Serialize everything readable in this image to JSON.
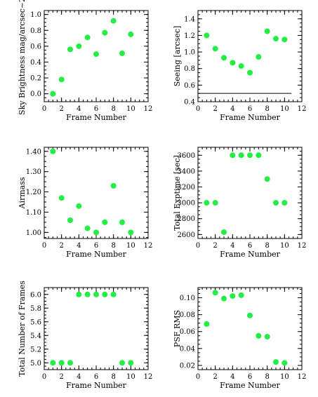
{
  "colors": {
    "point": "#22ee44",
    "axis": "#000000",
    "background": "#ffffff"
  },
  "chart_data": [
    {
      "type": "scatter",
      "title": "",
      "xlabel": "Frame Number",
      "ylabel": "Sky Brightness mag/arcsec~2",
      "xlim": [
        0,
        12
      ],
      "ylim": [
        -0.1,
        1.05
      ],
      "xticks": [
        0,
        2,
        4,
        6,
        8,
        10,
        12
      ],
      "xtick_labels": [
        "0",
        "2",
        "4",
        "6",
        "8",
        "10",
        "12"
      ],
      "yticks": [
        0.0,
        0.2,
        0.4,
        0.6,
        0.8,
        1.0
      ],
      "ytick_labels": [
        "0.0",
        "0.2",
        "0.4",
        "0.6",
        "0.8",
        "1.0"
      ],
      "x": [
        1,
        2,
        3,
        4,
        5,
        6,
        7,
        8,
        9,
        10
      ],
      "y": [
        0.0,
        0.18,
        0.56,
        0.6,
        0.71,
        0.5,
        0.77,
        0.92,
        0.51,
        0.75
      ],
      "grid": false
    },
    {
      "type": "scatter",
      "title": "",
      "xlabel": "Frame Number",
      "ylabel": "Seeing [arcsec]",
      "xlim": [
        0,
        12
      ],
      "ylim": [
        0.4,
        1.5
      ],
      "xticks": [
        0,
        2,
        4,
        6,
        8,
        10,
        12
      ],
      "xtick_labels": [
        "0",
        "2",
        "4",
        "6",
        "8",
        "10",
        "12"
      ],
      "yticks": [
        0.4,
        0.6,
        0.8,
        1.0,
        1.2,
        1.4
      ],
      "ytick_labels": [
        "0.4",
        "0.6",
        "0.8",
        "1.0",
        "1.2",
        "1.4"
      ],
      "x": [
        1,
        2,
        3,
        4,
        5,
        6,
        7,
        8,
        9,
        10
      ],
      "y": [
        1.2,
        1.04,
        0.93,
        0.87,
        0.83,
        0.75,
        0.94,
        1.25,
        1.16,
        1.15
      ],
      "reference_line": {
        "y": 0.5,
        "x": [
          0,
          10.8
        ]
      },
      "grid": false
    },
    {
      "type": "scatter",
      "title": "",
      "xlabel": "Frame Number",
      "ylabel": "Airmass",
      "xlim": [
        0,
        12
      ],
      "ylim": [
        0.97,
        1.42
      ],
      "xticks": [
        0,
        2,
        4,
        6,
        8,
        10,
        12
      ],
      "xtick_labels": [
        "0",
        "2",
        "4",
        "6",
        "8",
        "10",
        "12"
      ],
      "yticks": [
        1.0,
        1.1,
        1.2,
        1.3,
        1.4
      ],
      "ytick_labels": [
        "1.00",
        "1.10",
        "1.20",
        "1.30",
        "1.40"
      ],
      "x": [
        1,
        2,
        3,
        4,
        5,
        6,
        7,
        8,
        9,
        10
      ],
      "y": [
        1.4,
        1.17,
        1.06,
        1.13,
        1.02,
        1.0,
        1.05,
        1.23,
        1.05,
        1.0
      ],
      "grid": false
    },
    {
      "type": "scatter",
      "title": "",
      "xlabel": "Frame Number",
      "ylabel": "Total Exptime [sec]",
      "xlim": [
        0,
        12
      ],
      "ylim": [
        2550,
        3700
      ],
      "xticks": [
        0,
        2,
        4,
        6,
        8,
        10,
        12
      ],
      "xtick_labels": [
        "0",
        "2",
        "4",
        "6",
        "8",
        "10",
        "12"
      ],
      "yticks": [
        2600,
        2800,
        3000,
        3200,
        3400,
        3600
      ],
      "ytick_labels": [
        "2600",
        "2800",
        "3000",
        "3200",
        "3400",
        "3600"
      ],
      "x": [
        1,
        2,
        3,
        4,
        5,
        6,
        7,
        8,
        9,
        10
      ],
      "y": [
        3000,
        3000,
        2630,
        3600,
        3600,
        3600,
        3600,
        3300,
        3000,
        3000
      ],
      "grid": false
    },
    {
      "type": "scatter",
      "title": "",
      "xlabel": "Frame Number",
      "ylabel": "Total Number of Frames",
      "xlim": [
        0,
        12
      ],
      "ylim": [
        4.9,
        6.1
      ],
      "xticks": [
        0,
        2,
        4,
        6,
        8,
        10,
        12
      ],
      "xtick_labels": [
        "0",
        "2",
        "4",
        "6",
        "8",
        "10",
        "12"
      ],
      "yticks": [
        5.0,
        5.2,
        5.4,
        5.6,
        5.8,
        6.0
      ],
      "ytick_labels": [
        "5.0",
        "5.2",
        "5.4",
        "5.6",
        "5.8",
        "6.0"
      ],
      "x": [
        1,
        2,
        3,
        4,
        5,
        6,
        7,
        8,
        9,
        10
      ],
      "y": [
        5,
        5,
        5,
        6,
        6,
        6,
        6,
        6,
        5,
        5
      ],
      "grid": false
    },
    {
      "type": "scatter",
      "title": "",
      "xlabel": "Frame Number",
      "ylabel": "PSF RMS",
      "xlim": [
        0,
        12
      ],
      "ylim": [
        0.015,
        0.112
      ],
      "xticks": [
        0,
        2,
        4,
        6,
        8,
        10,
        12
      ],
      "xtick_labels": [
        "0",
        "2",
        "4",
        "6",
        "8",
        "10",
        "12"
      ],
      "yticks": [
        0.02,
        0.04,
        0.06,
        0.08,
        0.1
      ],
      "ytick_labels": [
        "0.02",
        "0.04",
        "0.06",
        "0.08",
        "0.10"
      ],
      "x": [
        1,
        2,
        3,
        4,
        5,
        6,
        7,
        8,
        9,
        10
      ],
      "y": [
        0.069,
        0.106,
        0.099,
        0.102,
        0.103,
        0.079,
        0.055,
        0.054,
        0.024,
        0.023
      ],
      "grid": false
    }
  ]
}
